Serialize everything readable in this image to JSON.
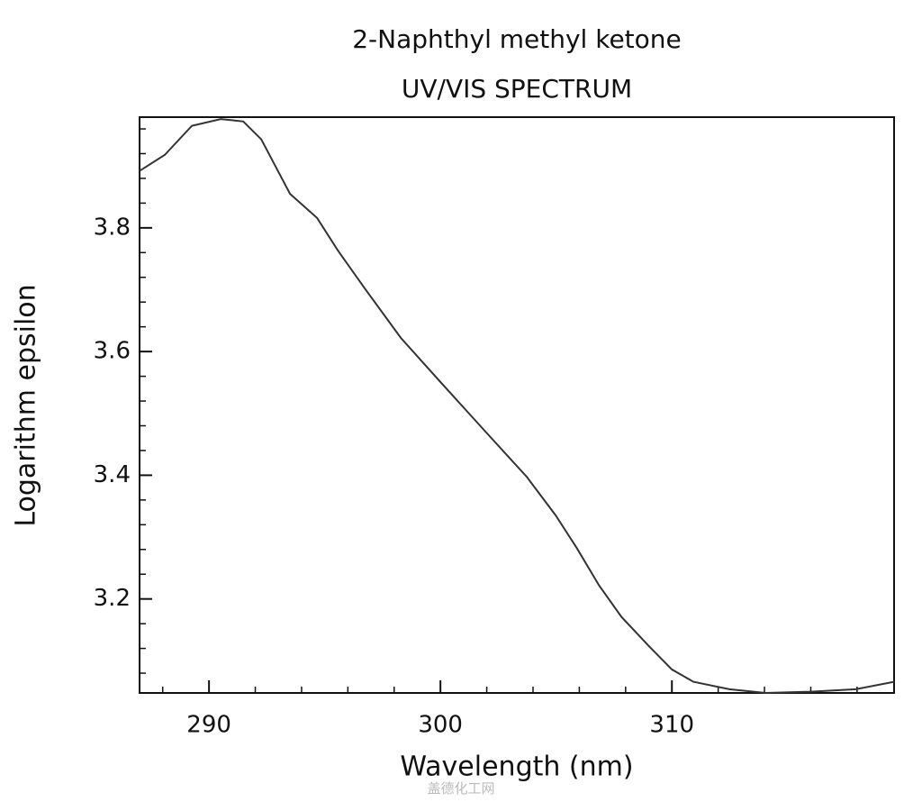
{
  "chart_data": {
    "type": "line",
    "title": "2-Naphthyl methyl ketone",
    "subtitle": "UV/VIS SPECTRUM",
    "x_label": "Wavelength (nm)",
    "y_label": "Logarithm epsilon",
    "watermark": "盖德化工网",
    "x": [
      287.0,
      288.09,
      289.26,
      290.51,
      291.48,
      292.26,
      293.5,
      294.67,
      295.56,
      296.73,
      298.29,
      300.04,
      301.98,
      303.74,
      304.98,
      305.88,
      306.85,
      307.82,
      309.0,
      310.0,
      310.93,
      312.49,
      314.05,
      316.0,
      317.94,
      319.6
    ],
    "series": [
      {
        "color": "#333333",
        "values": [
          3.892,
          3.918,
          3.965,
          3.976,
          3.972,
          3.943,
          3.855,
          3.816,
          3.764,
          3.702,
          3.622,
          3.549,
          3.469,
          3.397,
          3.335,
          3.283,
          3.222,
          3.171,
          3.124,
          3.086,
          3.066,
          3.054,
          3.048,
          3.05,
          3.054,
          3.066
        ]
      }
    ],
    "xlim": [
      287,
      319.6
    ],
    "ylim": [
      3.048,
      3.979
    ],
    "xticks": [
      290,
      300,
      310
    ],
    "yticks": [
      3.2,
      3.4,
      3.6,
      3.8
    ],
    "xminorticks": [
      288,
      292,
      294,
      296,
      298,
      302,
      304,
      306,
      308,
      312,
      314,
      316,
      318
    ],
    "yminorticks": [
      3.08,
      3.12,
      3.16,
      3.24,
      3.28,
      3.32,
      3.36,
      3.44,
      3.48,
      3.52,
      3.56,
      3.64,
      3.68,
      3.72,
      3.76,
      3.84,
      3.88,
      3.92,
      3.96
    ],
    "grid": false
  }
}
